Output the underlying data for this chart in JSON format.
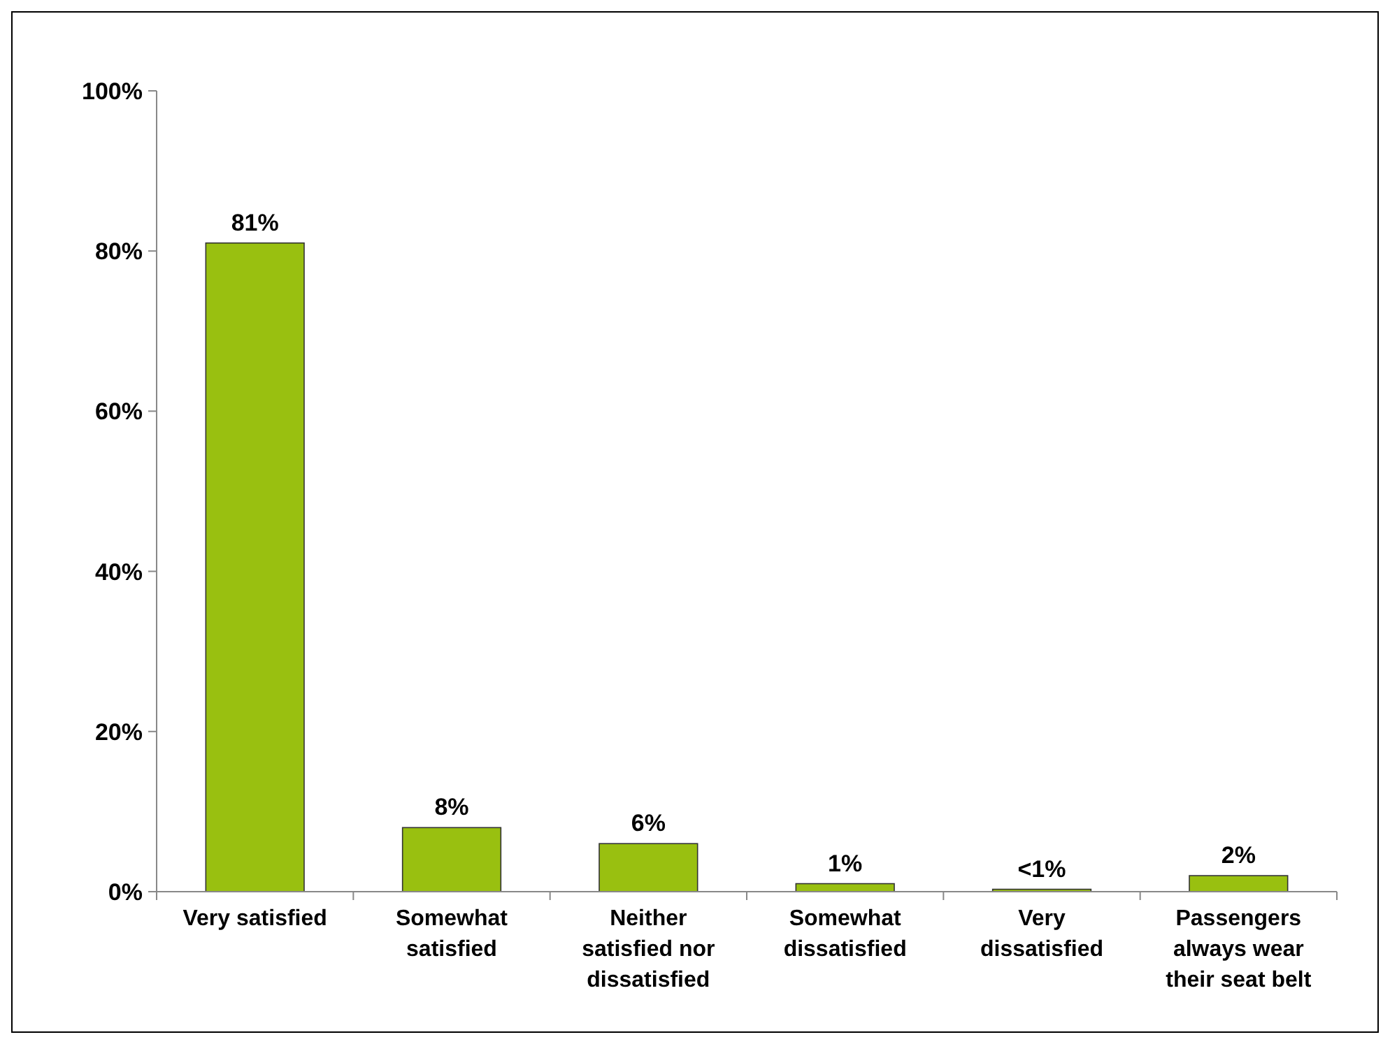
{
  "chart_data": {
    "type": "bar",
    "categories": [
      "Very satisfied",
      "Somewhat satisfied",
      "Neither satisfied nor dissatisfied",
      "Somewhat dissatisfied",
      "Very dissatisfied",
      "Passengers always wear their seat belt"
    ],
    "values": [
      81,
      8,
      6,
      1,
      0.3,
      2
    ],
    "value_labels": [
      "81%",
      "8%",
      "6%",
      "1%",
      "<1%",
      "2%"
    ],
    "color": "#99c010",
    "ylim": [
      0,
      100
    ],
    "yticks": [
      {
        "value": 0,
        "label": "0%"
      },
      {
        "value": 20,
        "label": "20%"
      },
      {
        "value": 40,
        "label": "40%"
      },
      {
        "value": 60,
        "label": "60%"
      },
      {
        "value": 80,
        "label": "80%"
      },
      {
        "value": 100,
        "label": "100%"
      }
    ],
    "grid": false
  }
}
